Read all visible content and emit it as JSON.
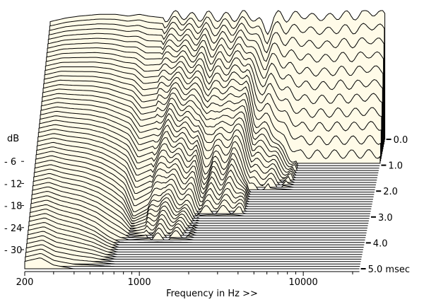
{
  "chart_data": {
    "type": "waterfall",
    "title": "",
    "xlabel": "Frequency in Hz >>",
    "ylabel": "dB",
    "zlabel_unit": "msec",
    "x_scale": "log",
    "xlim": [
      200,
      22000
    ],
    "ylim": [
      -35,
      0
    ],
    "tlim": [
      0,
      5.0
    ],
    "x_ticks": [
      200,
      1000,
      10000
    ],
    "x_tick_labels": [
      "200",
      "1000",
      "10000"
    ],
    "x_minor_ticks": [
      300,
      400,
      500,
      600,
      700,
      800,
      900,
      2000,
      3000,
      4000,
      5000,
      6000,
      7000,
      8000,
      9000,
      20000
    ],
    "y_ticks": [
      -6,
      -12,
      -18,
      -24,
      -30
    ],
    "y_tick_labels": [
      "- 6",
      "- 12",
      "- 18",
      "- 24",
      "- 30"
    ],
    "t_ticks": [
      0,
      1,
      2,
      3,
      4,
      5
    ],
    "t_tick_labels": [
      "0.0",
      "1.0",
      "2.0",
      "3.0",
      "4.0",
      "5.0"
    ],
    "frequencies": [
      200,
      250,
      300,
      400,
      500,
      600,
      700,
      800,
      1000,
      1200,
      1400,
      1600,
      1800,
      2000,
      2300,
      2600,
      3000,
      3400,
      3800,
      4200,
      4600,
      5000,
      5500,
      6000,
      7000,
      8000,
      9000,
      10000,
      12000,
      14000,
      16000,
      18000,
      20000
    ],
    "slices": [
      {
        "t": 0,
        "db": [
          -3,
          -2,
          -1.5,
          -1,
          -1,
          -1.5,
          -1,
          -1.5,
          -2,
          -1,
          -1.5,
          -2,
          -1,
          -2,
          -1.5,
          -2,
          -1,
          -1.5,
          -3,
          -6,
          -2,
          -1,
          -2,
          -1.5,
          -1,
          -2,
          -1.5,
          -2,
          -1,
          -1.5,
          -1,
          0,
          -1
        ]
      },
      {
        "t": 1,
        "db": [
          -9,
          -8,
          -8,
          -8,
          -8.5,
          -9.5,
          -10,
          -12.5,
          -12,
          -10,
          -11,
          -12,
          -11.5,
          -16,
          -13.5,
          -15,
          -13,
          -14.5,
          -23,
          -24,
          -24,
          -26,
          -30,
          -31.5,
          -35,
          -35,
          -35,
          -35,
          -35,
          -35,
          -35,
          -35,
          -35
        ]
      },
      {
        "t": 2,
        "db": [
          -15,
          -14,
          -14.5,
          -15,
          -16,
          -17.5,
          -19,
          -23.5,
          -22,
          -19,
          -20.5,
          -22,
          -22,
          -30,
          -25.5,
          -28,
          -25,
          -27.5,
          -35,
          -35,
          -35,
          -35,
          -35,
          -35,
          -35,
          -35,
          -35,
          -35,
          -35,
          -35,
          -35,
          -35,
          -35
        ]
      },
      {
        "t": 3,
        "db": [
          -21,
          -20,
          -21,
          -22,
          -23.5,
          -25.5,
          -28,
          -34.5,
          -32,
          -28,
          -30,
          -32,
          -32.5,
          -35,
          -35,
          -35,
          -35,
          -35,
          -35,
          -35,
          -35,
          -35,
          -35,
          -35,
          -35,
          -35,
          -35,
          -35,
          -35,
          -35,
          -35,
          -35,
          -35
        ]
      },
      {
        "t": 4,
        "db": [
          -27,
          -26,
          -27.5,
          -29,
          -31,
          -33.5,
          -35,
          -35,
          -35,
          -35,
          -35,
          -35,
          -35,
          -35,
          -35,
          -35,
          -35,
          -35,
          -35,
          -35,
          -35,
          -35,
          -35,
          -35,
          -35,
          -35,
          -35,
          -35,
          -35,
          -35,
          -35,
          -35,
          -35
        ]
      },
      {
        "t": 5,
        "db": [
          -33,
          -32,
          -34,
          -35,
          -35,
          -35,
          -35,
          -35,
          -35,
          -35,
          -35,
          -35,
          -35,
          -35,
          -35,
          -35,
          -35,
          -35,
          -35,
          -35,
          -35,
          -35,
          -35,
          -35,
          -35,
          -35,
          -35,
          -35,
          -35,
          -35,
          -35,
          -35,
          -35
        ]
      }
    ],
    "colors": {
      "fill": "#fffbe8",
      "stroke": "#000000"
    }
  }
}
